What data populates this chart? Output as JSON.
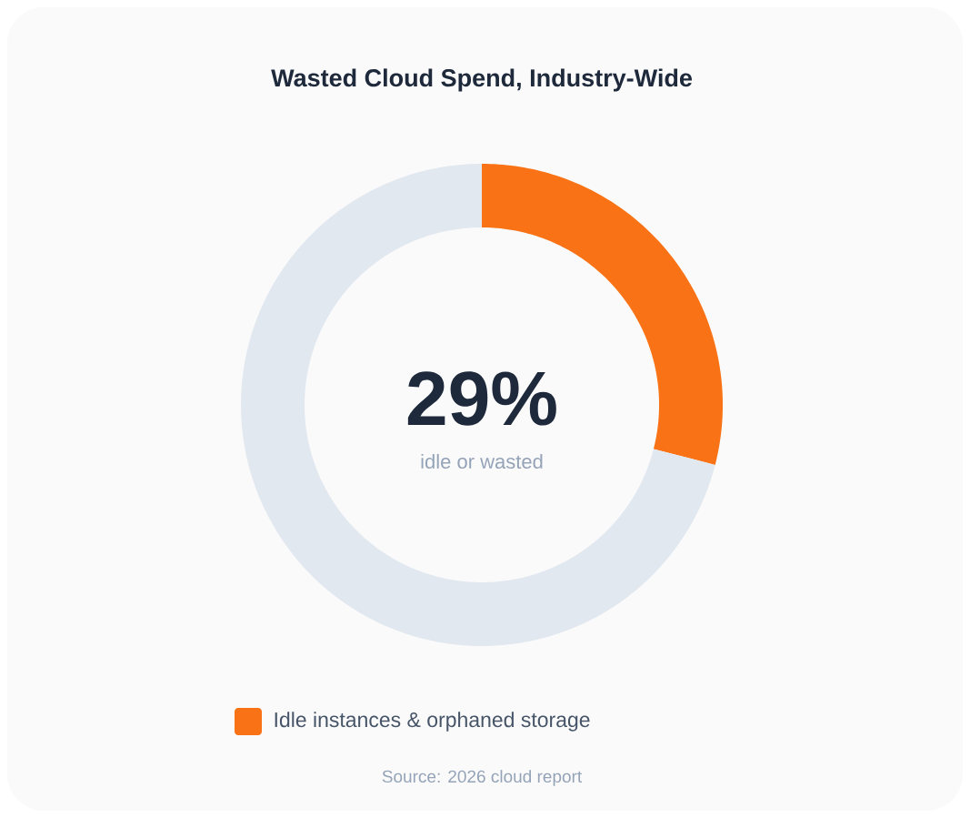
{
  "chart_data": {
    "type": "donut",
    "title": "Wasted Cloud Spend, Industry-Wide",
    "categories": [
      "Idle instances & orphaned storage",
      null
    ],
    "values": [
      29,
      71
    ],
    "colors": [
      "#f97316",
      "#e2e8f0"
    ],
    "legend": "bottom",
    "annotations": [
      "29%",
      "idle or wasted",
      "Source: 2026 cloud report"
    ]
  }
}
